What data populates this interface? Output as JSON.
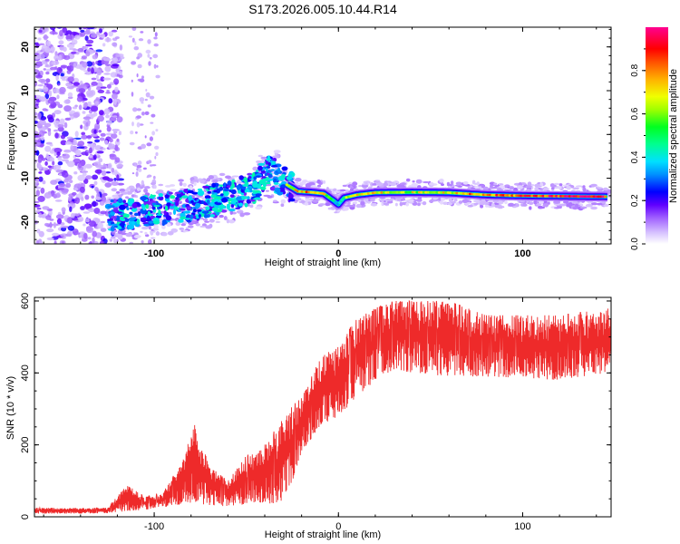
{
  "chart_data": [
    {
      "type": "heatmap",
      "title": "S173.2026.005.10.44.R14",
      "xlabel": "Height of straight line (km)",
      "ylabel": "Frequency (Hz)",
      "xlim": [
        -165,
        148
      ],
      "ylim": [
        -25,
        24.5
      ],
      "xticks": [
        -100,
        0,
        100
      ],
      "yticks": [
        -20,
        -10,
        0,
        10,
        20
      ],
      "colorbar": {
        "label": "Normalized spectral amplitude",
        "ticks": [
          "0.0",
          "0.2",
          "0.4",
          "0.6",
          "0.8"
        ],
        "tick_values": [
          0.0,
          0.2,
          0.4,
          0.6,
          0.8
        ],
        "range": [
          0,
          1
        ],
        "colors": [
          "#ffffff",
          "#b388ff",
          "#7a00ff",
          "#0000ff",
          "#00c8ff",
          "#00ff60",
          "#c8ff00",
          "#ff9a00",
          "#ff0000",
          "#ff00a0"
        ]
      },
      "ridge": {
        "x": [
          -120,
          -100,
          -80,
          -60,
          -45,
          -38,
          -30,
          -22,
          -15,
          -8,
          -3,
          0,
          3,
          10,
          20,
          40,
          60,
          80,
          100,
          120,
          145
        ],
        "y": [
          -18.5,
          -17.5,
          -16,
          -14.5,
          -12,
          -8,
          -11,
          -13,
          -13.2,
          -13.5,
          -15,
          -16,
          -14.5,
          -13.8,
          -13.3,
          -13.2,
          -13.3,
          -13.8,
          -14,
          -14.1,
          -14.2
        ],
        "amplitude": [
          0.35,
          0.4,
          0.45,
          0.45,
          0.45,
          0.35,
          0.55,
          0.7,
          0.8,
          0.75,
          0.5,
          0.4,
          0.55,
          0.65,
          0.7,
          0.65,
          0.7,
          0.8,
          0.85,
          0.9,
          0.9
        ]
      }
    },
    {
      "type": "line",
      "xlabel": "Height of straight line (km)",
      "ylabel": "SNR (10 * v/v)",
      "xlim": [
        -165,
        148
      ],
      "ylim": [
        0,
        610
      ],
      "xticks": [
        -100,
        0,
        100
      ],
      "yticks": [
        0,
        200,
        400,
        600
      ],
      "line_color": "#ee2a2a",
      "envelope": {
        "x": [
          -165,
          -125,
          -115,
          -105,
          -95,
          -85,
          -78,
          -70,
          -60,
          -50,
          -40,
          -32,
          -25,
          -20,
          -10,
          0,
          10,
          20,
          30,
          40,
          60,
          80,
          100,
          120,
          148
        ],
        "low": [
          8,
          10,
          15,
          20,
          25,
          35,
          40,
          30,
          30,
          35,
          40,
          30,
          100,
          180,
          250,
          280,
          330,
          380,
          410,
          400,
          390,
          390,
          385,
          380,
          400
        ],
        "high": [
          25,
          25,
          90,
          55,
          70,
          150,
          260,
          140,
          100,
          170,
          200,
          260,
          310,
          330,
          440,
          480,
          550,
          580,
          600,
          600,
          600,
          560,
          560,
          560,
          580
        ]
      }
    }
  ]
}
